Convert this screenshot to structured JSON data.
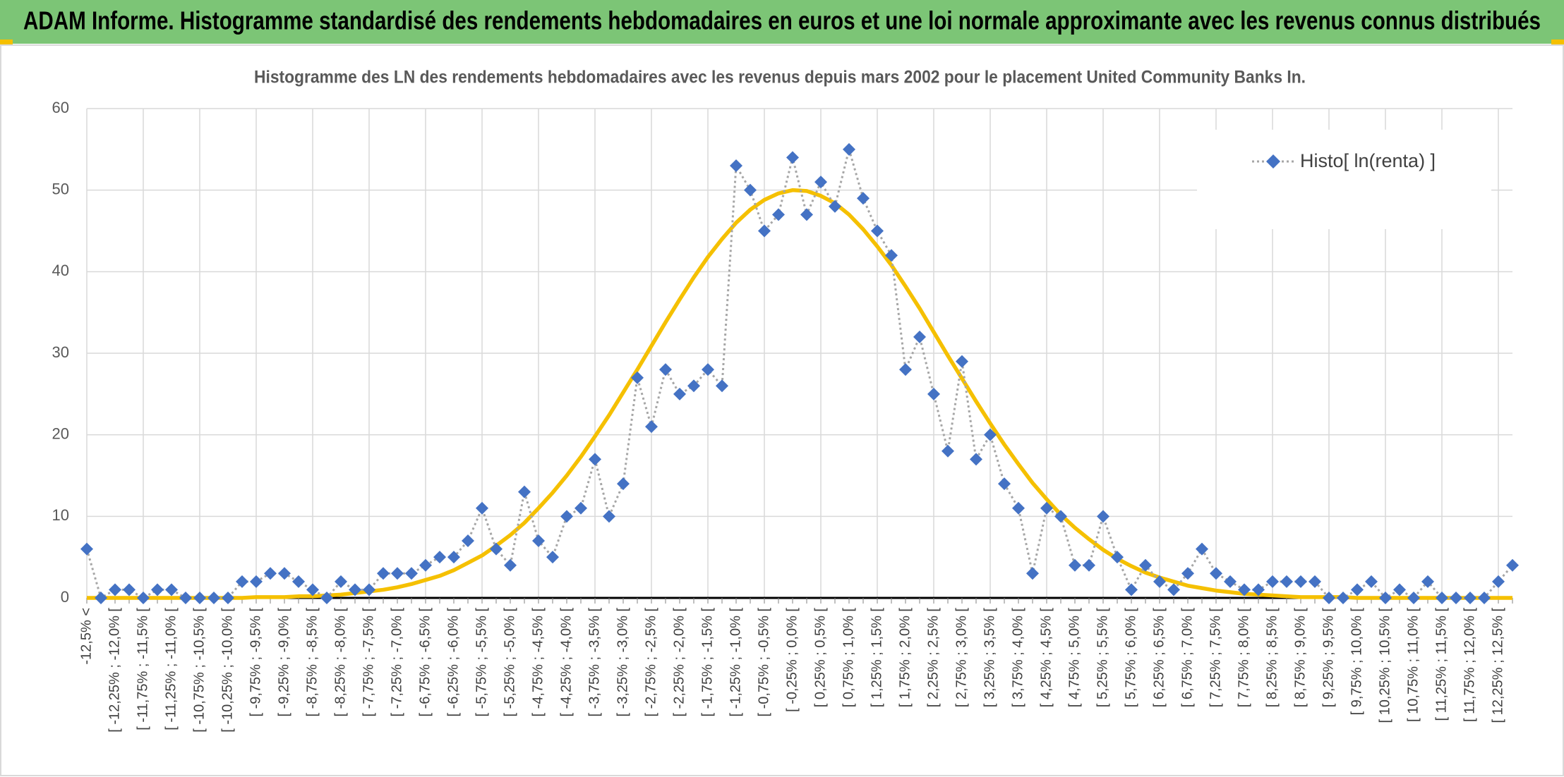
{
  "header": {
    "title": "ADAM Informe. Histogramme standardisé des rendements hebdomadaires en euros et une loi normale approximante avec les revenus connus distribués"
  },
  "chart_data": {
    "type": "line",
    "title": "Histogramme des LN des rendements hebdomadaires avec les revenus depuis mars 2002 pour le placement United Community Banks In.",
    "categories": [
      "-12,5% <",
      null,
      "[ -12,25% ; -12,0% [",
      null,
      "[ -11,75% ; -11,5% [",
      null,
      "[ -11,25% ; -11,0% [",
      null,
      "[ -10,75% ; -10,5% [",
      null,
      "[ -10,25% ; -10,0% [",
      null,
      "[ -9,75% ; -9,5% [",
      null,
      "[ -9,25% ; -9,0% [",
      null,
      "[ -8,75% ; -8,5% [",
      null,
      "[ -8,25% ; -8,0% [",
      null,
      "[ -7,75% ; -7,5% [",
      null,
      "[ -7,25% ; -7,0% [",
      null,
      "[ -6,75% ; -6,5% [",
      null,
      "[ -6,25% ; -6,0% [",
      null,
      "[ -5,75% ; -5,5% [",
      null,
      "[ -5,25% ; -5,0% [",
      null,
      "[ -4,75% ; -4,5% [",
      null,
      "[ -4,25% ; -4,0% [",
      null,
      "[ -3,75% ; -3,5% [",
      null,
      "[ -3,25% ; -3,0% [",
      null,
      "[ -2,75% ; -2,5% [",
      null,
      "[ -2,25% ; -2,0% [",
      null,
      "[ -1,75% ; -1,5% [",
      null,
      "[ -1,25% ; -1,0% [",
      null,
      "[ -0,75% ; -0,5% [",
      null,
      "[ -0,25% ; 0,0% [",
      null,
      "[ 0,25% ; 0,5% [",
      null,
      "[ 0,75% ; 1,0% [",
      null,
      "[ 1,25% ; 1,5% [",
      null,
      "[ 1,75% ; 2,0% [",
      null,
      "[ 2,25% ; 2,5% [",
      null,
      "[ 2,75% ; 3,0% [",
      null,
      "[ 3,25% ; 3,5% [",
      null,
      "[ 3,75% ; 4,0% [",
      null,
      "[ 4,25% ; 4,5% [",
      null,
      "[ 4,75% ; 5,0% [",
      null,
      "[ 5,25% ; 5,5% [",
      null,
      "[ 5,75% ; 6,0% [",
      null,
      "[ 6,25% ; 6,5% [",
      null,
      "[ 6,75% ; 7,0% [",
      null,
      "[ 7,25% ; 7,5% [",
      null,
      "[ 7,75% ; 8,0% [",
      null,
      "[ 8,25% ; 8,5% [",
      null,
      "[ 8,75% ; 9,0% [",
      null,
      "[ 9,25% ; 9,5% [",
      null,
      "[ 9,75% ; 10,0% [",
      null,
      "[ 10,25% ; 10,5% [",
      null,
      "[ 10,75% ; 11,0% [",
      null,
      "[ 11,25% ; 11,5% [",
      null,
      "[ 11,75% ; 12,0% [",
      null,
      "[ 12,25% ; 12,5% [",
      null
    ],
    "series": [
      {
        "name": "Histo[ ln(renta) ]",
        "color": "#4472c4",
        "line_color": "#a6a6a6",
        "marker": "diamond",
        "dash": "dotted",
        "values": [
          6,
          0,
          1,
          1,
          0,
          1,
          1,
          0,
          0,
          0,
          0,
          2,
          2,
          3,
          3,
          2,
          1,
          0,
          2,
          1,
          1,
          3,
          3,
          3,
          4,
          5,
          5,
          7,
          11,
          6,
          4,
          13,
          7,
          5,
          10,
          11,
          17,
          10,
          14,
          27,
          21,
          28,
          25,
          26,
          28,
          26,
          53,
          50,
          45,
          47,
          54,
          47,
          51,
          48,
          55,
          49,
          45,
          42,
          28,
          32,
          25,
          18,
          29,
          17,
          20,
          14,
          11,
          3,
          11,
          10,
          4,
          4,
          10,
          5,
          1,
          4,
          2,
          1,
          3,
          6,
          3,
          2,
          1,
          1,
          2,
          2,
          2,
          2,
          0,
          0,
          1,
          2,
          0,
          1,
          0,
          2,
          0,
          0,
          0,
          0,
          2,
          4
        ]
      },
      {
        "color": "#f5c000",
        "marker": "none",
        "dash": "solid",
        "values": [
          0,
          0,
          0,
          0,
          0,
          0,
          0,
          0,
          0,
          0,
          0,
          0,
          0.1,
          0.1,
          0.1,
          0.2,
          0.2,
          0.3,
          0.4,
          0.6,
          0.8,
          1,
          1.3,
          1.7,
          2.2,
          2.7,
          3.4,
          4.3,
          5.2,
          6.4,
          7.7,
          9.2,
          11,
          12.9,
          15,
          17.3,
          19.8,
          22.4,
          25.2,
          28,
          30.9,
          33.8,
          36.6,
          39.3,
          41.8,
          44,
          46,
          47.6,
          48.8,
          49.6,
          50,
          49.9,
          49.3,
          48.4,
          47,
          45.2,
          43.1,
          40.8,
          38.2,
          35.5,
          32.6,
          29.7,
          26.9,
          24.1,
          21.4,
          18.8,
          16.4,
          14.1,
          12.1,
          10.2,
          8.6,
          7.2,
          5.9,
          4.8,
          3.9,
          3.1,
          2.5,
          2,
          1.5,
          1.2,
          0.9,
          0.7,
          0.5,
          0.4,
          0.3,
          0.2,
          0.1,
          0.1,
          0.1,
          0.1,
          0,
          0,
          0,
          0,
          0,
          0,
          0,
          0,
          0,
          0,
          0,
          0
        ]
      }
    ],
    "ylim": [
      0,
      60
    ],
    "yticks": [
      0,
      10,
      20,
      30,
      40,
      50,
      60
    ],
    "grid": true,
    "legend": "top-right"
  }
}
